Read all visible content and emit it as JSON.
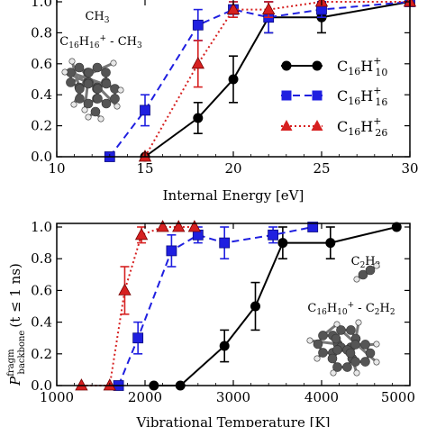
{
  "chart_data": [
    {
      "type": "line",
      "xlabel": "Internal Energy [eV]",
      "ylabel": "",
      "xlim": [
        10,
        30
      ],
      "ylim": [
        0,
        1.0
      ],
      "xticks": [
        10,
        15,
        20,
        25,
        30
      ],
      "yticks": [
        0.0,
        0.2,
        0.4,
        0.6,
        0.8,
        1.0
      ],
      "legend": "right",
      "annotation": {
        "top": "CH3",
        "bottom": "C16H16+ - CH3"
      },
      "series": [
        {
          "name": "C16H10+",
          "label_base": "C",
          "label_sub1": "16",
          "label_mid": "H",
          "label_sup": "+",
          "label_sub2": "10",
          "color": "#000000",
          "marker": "circle",
          "dash": "solid",
          "points": [
            {
              "x": 15,
              "y": 0.0,
              "err": 0.0
            },
            {
              "x": 18,
              "y": 0.25,
              "err": 0.1
            },
            {
              "x": 20,
              "y": 0.5,
              "err": 0.15
            },
            {
              "x": 22,
              "y": 0.9,
              "err": 0.1
            },
            {
              "x": 25,
              "y": 0.9,
              "err": 0.1
            },
            {
              "x": 30,
              "y": 1.0,
              "err": 0.0
            }
          ]
        },
        {
          "name": "C16H16+",
          "label_base": "C",
          "label_sub1": "16",
          "label_mid": "H",
          "label_sup": "+",
          "label_sub2": "16",
          "color": "#1f1fe0",
          "marker": "square",
          "dash": "dashed",
          "points": [
            {
              "x": 13,
              "y": 0.0,
              "err": 0.0
            },
            {
              "x": 15,
              "y": 0.3,
              "err": 0.1
            },
            {
              "x": 18,
              "y": 0.85,
              "err": 0.1
            },
            {
              "x": 20,
              "y": 0.95,
              "err": 0.05
            },
            {
              "x": 22,
              "y": 0.9,
              "err": 0.1
            },
            {
              "x": 25,
              "y": 0.95,
              "err": 0.05
            },
            {
              "x": 30,
              "y": 1.0,
              "err": 0.0
            }
          ]
        },
        {
          "name": "C16H26+",
          "label_base": "C",
          "label_sub1": "16",
          "label_mid": "H",
          "label_sup": "+",
          "label_sub2": "26",
          "color": "#d62020",
          "marker": "triangle",
          "dash": "dotted",
          "points": [
            {
              "x": 15,
              "y": 0.0,
              "err": 0.0
            },
            {
              "x": 18,
              "y": 0.6,
              "err": 0.15
            },
            {
              "x": 20,
              "y": 0.95,
              "err": 0.05
            },
            {
              "x": 22,
              "y": 0.95,
              "err": 0.05
            },
            {
              "x": 25,
              "y": 1.0,
              "err": 0.0
            },
            {
              "x": 30,
              "y": 1.0,
              "err": 0.0
            }
          ]
        }
      ]
    },
    {
      "type": "line",
      "xlabel": "Vibrational Temperature [K]",
      "ylabel": "P fragm backbone (t ≤ 1 ns)",
      "ylabel_main": "P",
      "ylabel_sup": "fragm",
      "ylabel_sub": "backbone",
      "ylabel_tail": "(t ≤ 1 ns)",
      "xlim": [
        1000,
        5000
      ],
      "ylim": [
        0,
        1.0
      ],
      "xticks": [
        1000,
        2000,
        3000,
        4000,
        5000
      ],
      "yticks": [
        0.0,
        0.2,
        0.4,
        0.6,
        0.8,
        1.0
      ],
      "annotation": {
        "top": "C2H2",
        "bottom": "C16H10+ - C2H2"
      },
      "series": [
        {
          "name": "C16H10+",
          "color": "#000000",
          "marker": "circle",
          "dash": "solid",
          "points": [
            {
              "x": 2100,
              "y": 0.0,
              "err": 0.0
            },
            {
              "x": 2400,
              "y": 0.0,
              "err": 0.0
            },
            {
              "x": 2900,
              "y": 0.25,
              "err": 0.1
            },
            {
              "x": 3250,
              "y": 0.5,
              "err": 0.15
            },
            {
              "x": 3560,
              "y": 0.9,
              "err": 0.1
            },
            {
              "x": 4100,
              "y": 0.9,
              "err": 0.1
            },
            {
              "x": 4850,
              "y": 1.0,
              "err": 0.0
            }
          ]
        },
        {
          "name": "C16H16+",
          "color": "#1f1fe0",
          "marker": "square",
          "dash": "dashed",
          "points": [
            {
              "x": 1700,
              "y": 0.0,
              "err": 0.0
            },
            {
              "x": 1920,
              "y": 0.3,
              "err": 0.1
            },
            {
              "x": 2300,
              "y": 0.85,
              "err": 0.1
            },
            {
              "x": 2600,
              "y": 0.95,
              "err": 0.05
            },
            {
              "x": 2900,
              "y": 0.9,
              "err": 0.1
            },
            {
              "x": 3450,
              "y": 0.95,
              "err": 0.05
            },
            {
              "x": 3900,
              "y": 1.0,
              "err": 0.0
            }
          ]
        },
        {
          "name": "C16H26+",
          "color": "#d62020",
          "marker": "triangle",
          "dash": "dotted",
          "points": [
            {
              "x": 1280,
              "y": 0.0,
              "err": 0.0
            },
            {
              "x": 1600,
              "y": 0.0,
              "err": 0.0
            },
            {
              "x": 1770,
              "y": 0.6,
              "err": 0.15
            },
            {
              "x": 1960,
              "y": 0.95,
              "err": 0.05
            },
            {
              "x": 2200,
              "y": 1.0,
              "err": 0.0
            },
            {
              "x": 2380,
              "y": 1.0,
              "err": 0.0
            },
            {
              "x": 2560,
              "y": 1.0,
              "err": 0.0
            }
          ]
        }
      ]
    }
  ]
}
